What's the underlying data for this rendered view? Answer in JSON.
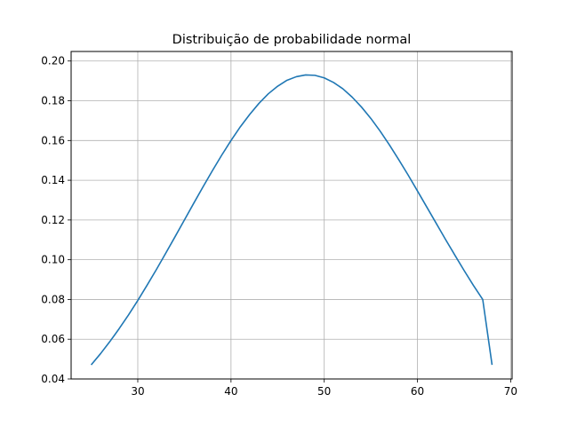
{
  "chart_data": {
    "type": "line",
    "title": "Distribuição de probabilidade normal",
    "xlabel": "",
    "ylabel": "",
    "xlim": [
      22.85,
      70.15
    ],
    "ylim": [
      0.04,
      0.2048
    ],
    "grid": true,
    "x_ticks": [
      30,
      40,
      50,
      60,
      70
    ],
    "y_ticks": [
      0.04,
      0.06,
      0.08,
      0.1,
      0.12,
      0.14,
      0.16,
      0.18,
      0.2
    ],
    "x_tick_labels": [
      "30",
      "40",
      "50",
      "60",
      "70"
    ],
    "y_tick_labels": [
      "0.04",
      "0.06",
      "0.08",
      "0.10",
      "0.12",
      "0.14",
      "0.16",
      "0.18",
      "0.20"
    ],
    "series": [
      {
        "color": "#1f77b4",
        "x": [
          25,
          26,
          27,
          28,
          29,
          30,
          31,
          32,
          33,
          34,
          35,
          36,
          37,
          38,
          39,
          40,
          41,
          42,
          43,
          44,
          45,
          46,
          47,
          48,
          49,
          50,
          51,
          52,
          53,
          54,
          55,
          56,
          57,
          58,
          59,
          60,
          61,
          62,
          63,
          64,
          65,
          66,
          67,
          68
        ],
        "y": [
          0.0471,
          0.0527,
          0.0588,
          0.0653,
          0.0722,
          0.0795,
          0.0872,
          0.0951,
          0.1033,
          0.1116,
          0.12,
          0.1284,
          0.1367,
          0.1448,
          0.1526,
          0.16,
          0.1669,
          0.1731,
          0.1787,
          0.1835,
          0.1873,
          0.1903,
          0.1921,
          0.193,
          0.1928,
          0.1915,
          0.1892,
          0.186,
          0.1818,
          0.1768,
          0.1711,
          0.1647,
          0.1577,
          0.1503,
          0.1426,
          0.1346,
          0.1265,
          0.1184,
          0.1103,
          0.1024,
          0.0946,
          0.0871,
          0.08,
          0.0471
        ]
      }
    ]
  }
}
